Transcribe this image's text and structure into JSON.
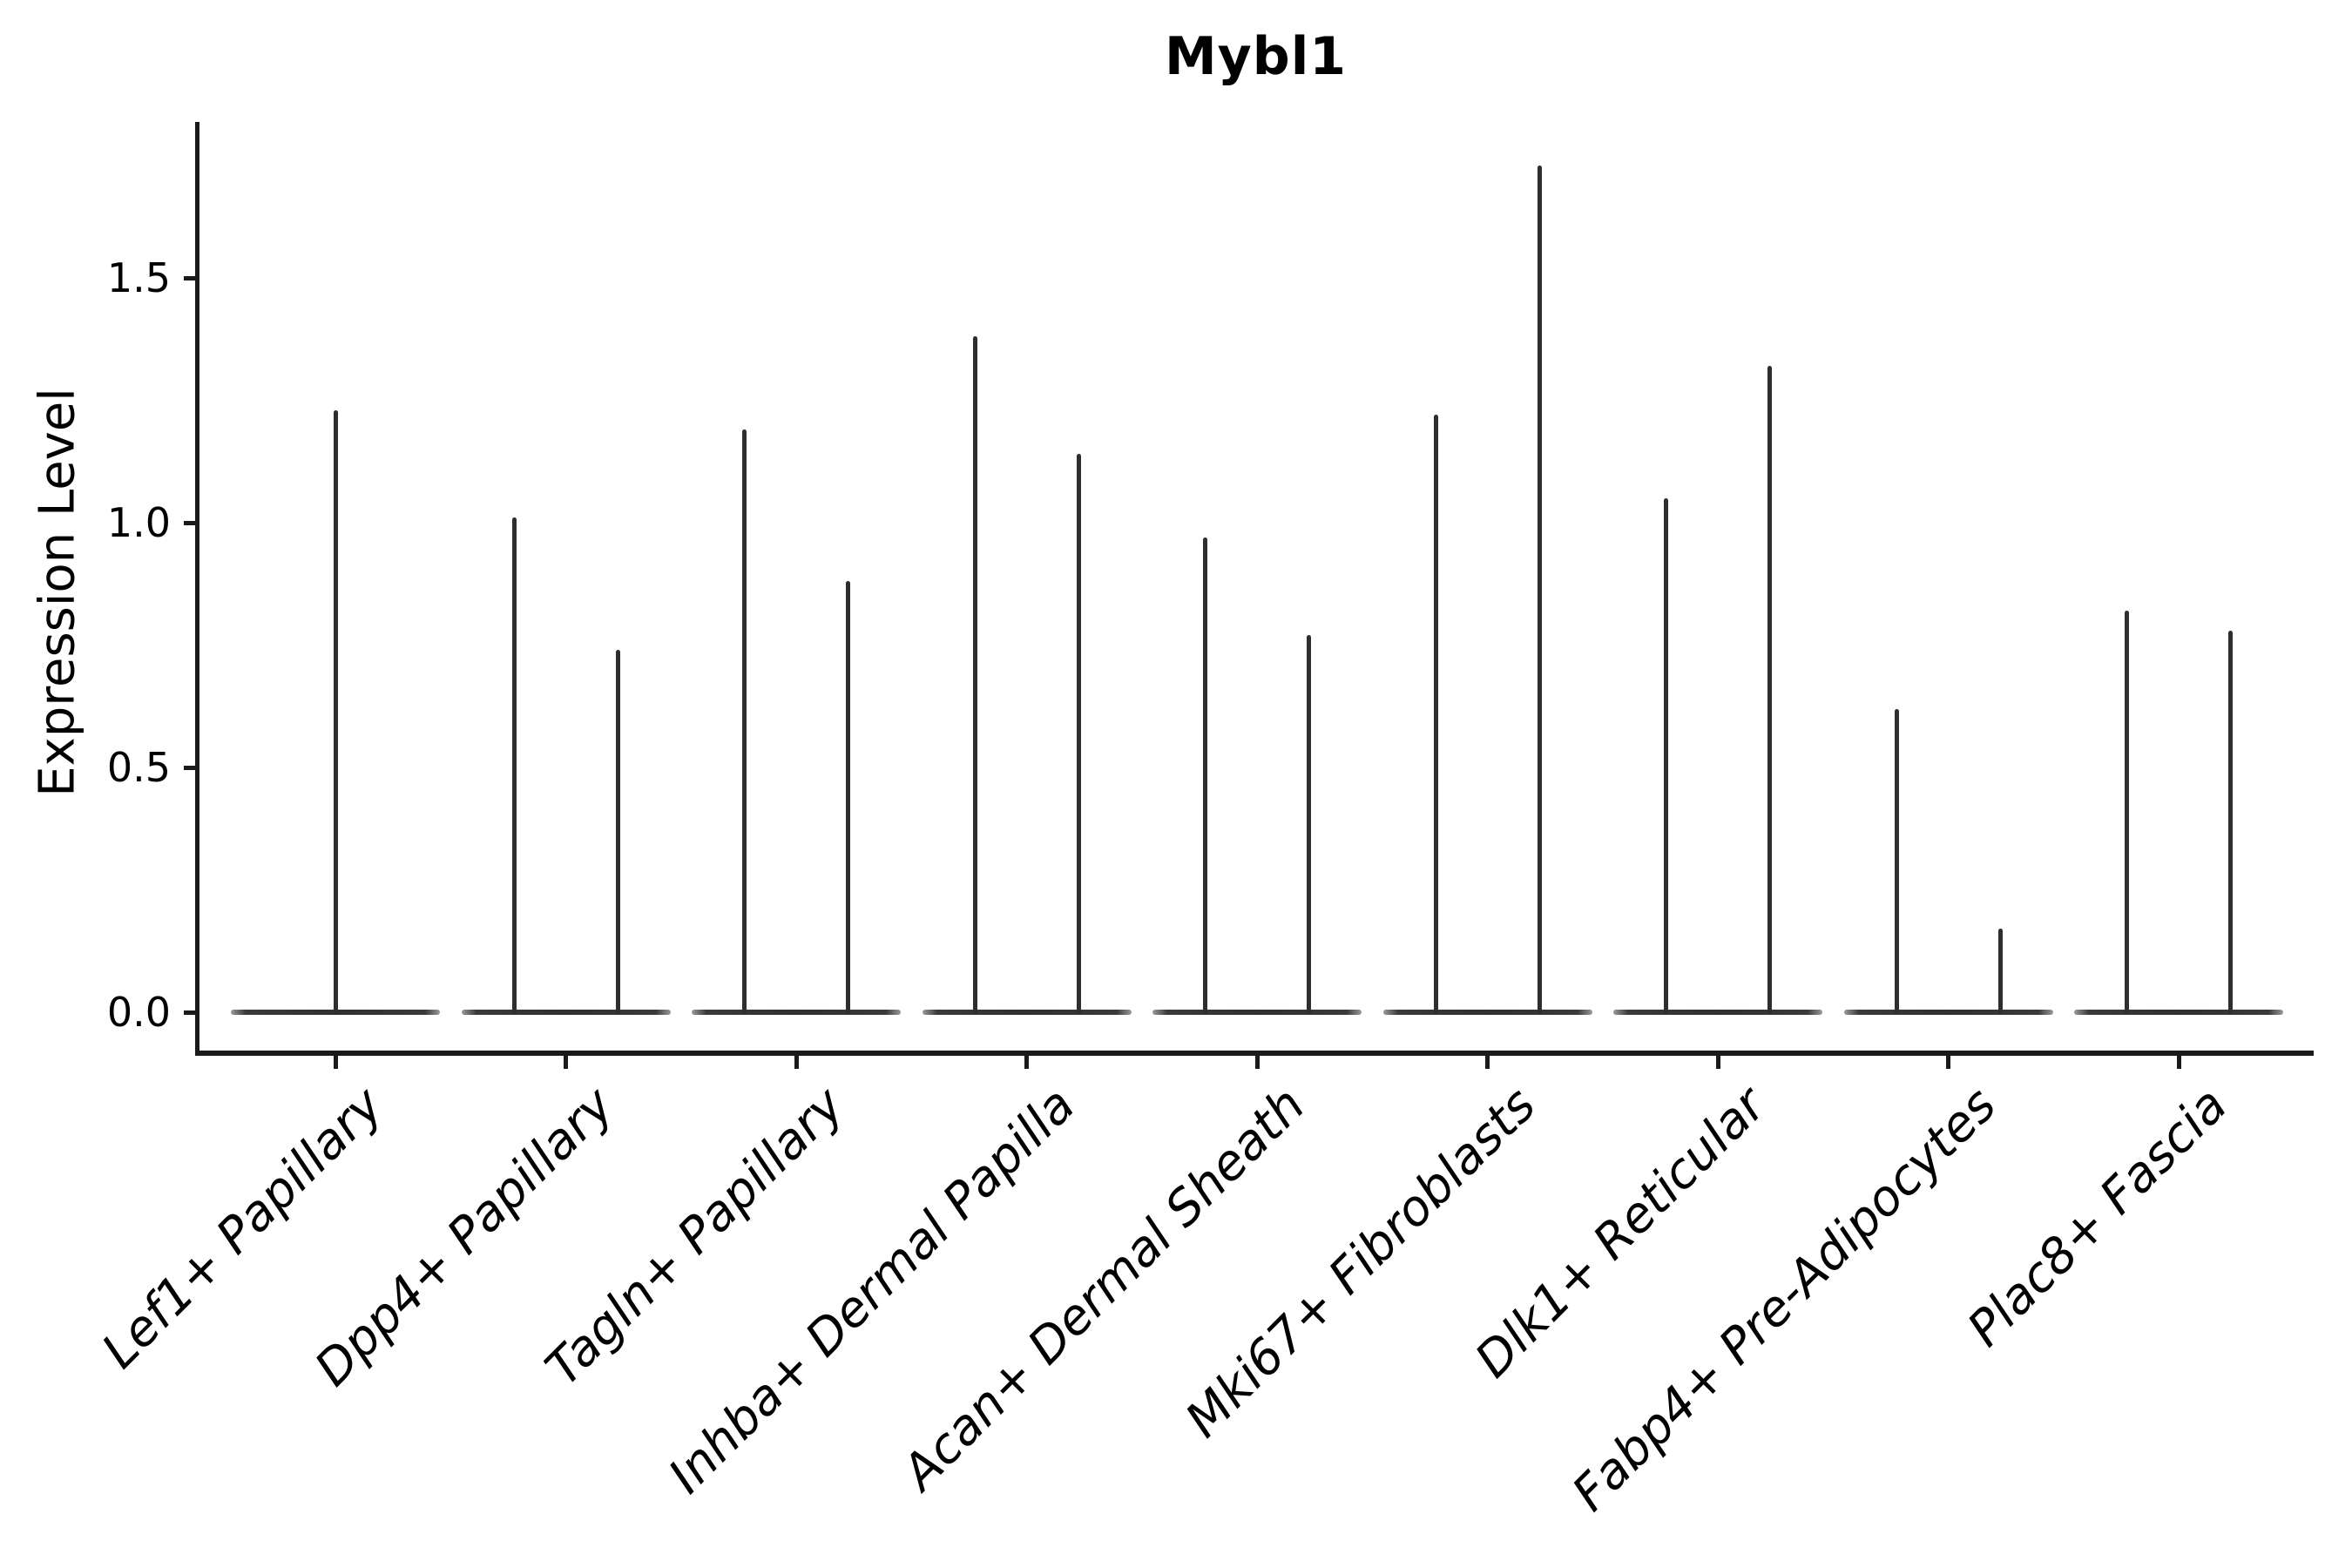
{
  "figure": {
    "background_color": "#ffffff",
    "text_color": "#000000",
    "violin_color": "#2e2e2e",
    "spine_color": "#1a1a1a"
  },
  "chart_data": {
    "type": "violin",
    "title": "Mybl1",
    "ylabel": "Expression Level",
    "xlabel": "",
    "ytick_labels": [
      "0.0",
      "0.5",
      "1.0",
      "1.5"
    ],
    "ytick_values": [
      0.0,
      0.5,
      1.0,
      1.5
    ],
    "ylim": [
      -0.08,
      1.82
    ],
    "grid": false,
    "legend": null,
    "xtick_label_style": "italic, rotated 45 degrees, right-anchored",
    "shape_note": "Each violin is almost entirely concentrated at expression 0 (flat body on the zero baseline) with a single thin density tail rising to the listed maximum. First category shows one violin; all others show two side-by-side violins sharing one baseline.",
    "categories": [
      "Lef1+ Papillary",
      "Dpp4+ Papillary",
      "Tagln+ Papillary",
      "Inhba+ Dermal Papilla",
      "Acan+ Dermal Sheath",
      "Mki67+ Fibroblasts",
      "Dlk1+ Reticular",
      "Fabp4+ Pre-Adipocytes",
      "Plac8+ Fascia"
    ],
    "series": [
      {
        "category": "Lef1+ Papillary",
        "violin_maxima": [
          1.23
        ]
      },
      {
        "category": "Dpp4+ Papillary",
        "violin_maxima": [
          1.01,
          0.74
        ]
      },
      {
        "category": "Tagln+ Papillary",
        "violin_maxima": [
          1.19,
          0.88
        ]
      },
      {
        "category": "Inhba+ Dermal Papilla",
        "violin_maxima": [
          1.38,
          1.14
        ]
      },
      {
        "category": "Acan+ Dermal Sheath",
        "violin_maxima": [
          0.97,
          0.77
        ]
      },
      {
        "category": "Mki67+ Fibroblasts",
        "violin_maxima": [
          1.22,
          1.73
        ]
      },
      {
        "category": "Dlk1+ Reticular",
        "violin_maxima": [
          1.05,
          1.32
        ]
      },
      {
        "category": "Fabp4+ Pre-Adipocytes",
        "violin_maxima": [
          0.62,
          0.17
        ]
      },
      {
        "category": "Plac8+ Fascia",
        "violin_maxima": [
          0.82,
          0.78
        ]
      }
    ]
  }
}
